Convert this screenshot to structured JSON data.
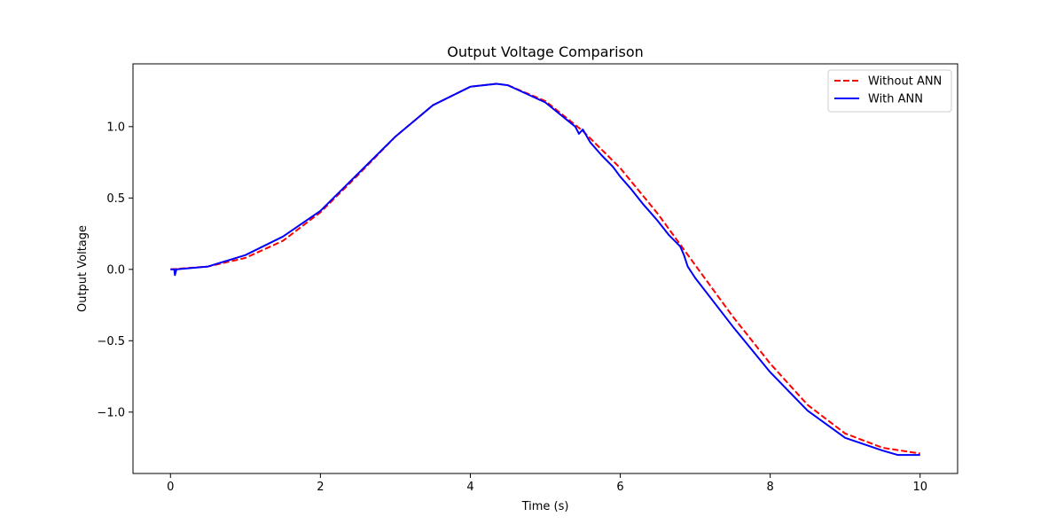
{
  "chart_data": {
    "type": "line",
    "title": "Output Voltage Comparison",
    "xlabel": "Time (s)",
    "ylabel": "Output Voltage",
    "xlim": [
      -0.5,
      10.5
    ],
    "ylim": [
      -1.43,
      1.44
    ],
    "xticks": [
      0,
      2,
      4,
      6,
      8,
      10
    ],
    "xtick_labels": [
      "0",
      "2",
      "4",
      "6",
      "8",
      "10"
    ],
    "yticks": [
      -1.0,
      -0.5,
      0.0,
      0.5,
      1.0
    ],
    "ytick_labels": [
      "−1.0",
      "−0.5",
      "0.0",
      "0.5",
      "1.0"
    ],
    "grid": false,
    "legend_position": "top-right",
    "series": [
      {
        "name": "Without ANN",
        "color": "#ff0000",
        "style": "dashed",
        "x": [
          0,
          0.5,
          1.0,
          1.5,
          2.0,
          2.5,
          3.0,
          3.5,
          4.0,
          4.35,
          4.5,
          5.0,
          5.5,
          6.0,
          6.5,
          7.0,
          7.5,
          8.0,
          8.5,
          9.0,
          9.5,
          10.0
        ],
        "y": [
          0.0,
          0.02,
          0.08,
          0.2,
          0.4,
          0.66,
          0.93,
          1.15,
          1.28,
          1.3,
          1.29,
          1.18,
          0.97,
          0.71,
          0.39,
          0.03,
          -0.33,
          -0.66,
          -0.95,
          -1.15,
          -1.25,
          -1.29
        ]
      },
      {
        "name": "With ANN",
        "color": "#0000ff",
        "style": "solid",
        "x": [
          0,
          0.05,
          0.06,
          0.08,
          0.5,
          1.0,
          1.5,
          2.0,
          2.5,
          3.0,
          3.5,
          4.0,
          4.35,
          4.5,
          5.0,
          5.4,
          5.45,
          5.5,
          5.6,
          5.75,
          5.9,
          6.0,
          6.15,
          6.3,
          6.4,
          6.5,
          6.65,
          6.8,
          6.85,
          6.9,
          7.0,
          7.5,
          8.0,
          8.5,
          9.0,
          9.5,
          9.7,
          10.0
        ],
        "y": [
          0.0,
          0.0,
          -0.04,
          0.0,
          0.02,
          0.1,
          0.23,
          0.41,
          0.67,
          0.93,
          1.15,
          1.28,
          1.3,
          1.29,
          1.17,
          1.0,
          0.95,
          0.98,
          0.89,
          0.8,
          0.72,
          0.65,
          0.56,
          0.46,
          0.4,
          0.34,
          0.24,
          0.16,
          0.1,
          0.02,
          -0.06,
          -0.4,
          -0.72,
          -0.99,
          -1.18,
          -1.27,
          -1.3,
          -1.3
        ]
      }
    ]
  }
}
